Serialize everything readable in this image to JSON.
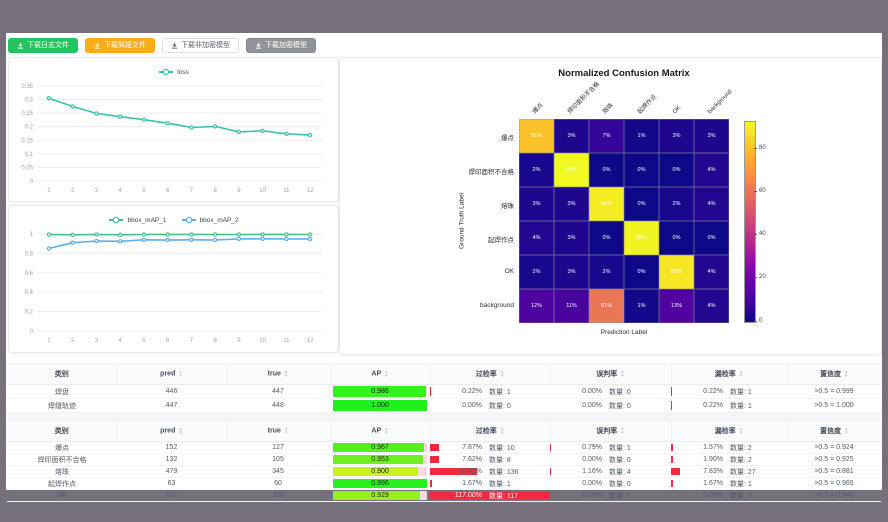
{
  "colors": {
    "frame": "#76707A",
    "button_green": "#22c45e",
    "button_orange": "#faad14",
    "button_gray": "#909399",
    "metric_bar": "#f5283c",
    "ap_track": "#ffd9de"
  },
  "toolbar": {
    "buttons": [
      {
        "label": "下载日志文件",
        "variant": "green"
      },
      {
        "label": "下载简报文件",
        "variant": "orange"
      },
      {
        "label": "下载非加密模型",
        "variant": "plain"
      },
      {
        "label": "下载加密模型",
        "variant": "gray"
      }
    ]
  },
  "chart_data": [
    {
      "type": "line",
      "title": "",
      "x": [
        1,
        2,
        3,
        4,
        5,
        6,
        7,
        8,
        9,
        10,
        11,
        12
      ],
      "series": [
        {
          "name": "loss",
          "color": "#3bc3ac",
          "values": [
            0.305,
            0.275,
            0.249,
            0.237,
            0.226,
            0.213,
            0.197,
            0.201,
            0.181,
            0.185,
            0.174,
            0.169
          ]
        }
      ],
      "ylim": [
        0,
        0.35
      ],
      "ytick_step": 0.05,
      "legend_position": "top",
      "grid": true
    },
    {
      "type": "line",
      "title": "",
      "x": [
        1,
        2,
        3,
        4,
        5,
        6,
        7,
        8,
        9,
        10,
        11,
        12
      ],
      "series": [
        {
          "name": "bbox_mAP_1",
          "color": "#3dc48e",
          "values": [
            0.995,
            0.992,
            0.995,
            0.992,
            0.995,
            0.996,
            0.996,
            0.995,
            0.995,
            0.996,
            0.996,
            0.995
          ]
        },
        {
          "name": "bbox_mAP_2",
          "color": "#58aef0",
          "values": [
            0.85,
            0.91,
            0.928,
            0.925,
            0.94,
            0.937,
            0.94,
            0.938,
            0.95,
            0.951,
            0.949,
            0.948
          ]
        }
      ],
      "ylim": [
        0,
        1
      ],
      "ytick_step": 0.2,
      "legend_position": "top",
      "grid": true
    },
    {
      "type": "heatmap",
      "title": "Normalized Confusion Matrix",
      "xlabel": "Prediction Label",
      "ylabel": "Ground Truth Label",
      "labels": [
        "爆点",
        "焊印面积不合格",
        "熔珠",
        "起焊作点",
        "OK",
        "background"
      ],
      "values": [
        [
          81,
          3,
          7,
          1,
          3,
          3
        ],
        [
          2,
          93,
          0,
          0,
          0,
          4
        ],
        [
          3,
          3,
          90,
          0,
          2,
          4
        ],
        [
          4,
          3,
          0,
          92,
          0,
          0
        ],
        [
          2,
          3,
          2,
          0,
          89,
          4
        ],
        [
          12,
          11,
          61,
          1,
          13,
          4
        ]
      ],
      "vmin": 0,
      "vmax": 93,
      "colorbar_ticks": [
        0,
        20,
        40,
        60,
        80
      ],
      "colormap": "plasma",
      "colormap_stops": [
        [
          0.0,
          "#0d0887"
        ],
        [
          0.1,
          "#41049d"
        ],
        [
          0.2,
          "#6a00a8"
        ],
        [
          0.3,
          "#8f0da4"
        ],
        [
          0.4,
          "#b12a90"
        ],
        [
          0.5,
          "#cc4778"
        ],
        [
          0.6,
          "#e16462"
        ],
        [
          0.7,
          "#f2844b"
        ],
        [
          0.8,
          "#fca636"
        ],
        [
          0.9,
          "#fcce25"
        ],
        [
          1.0,
          "#f0f921"
        ]
      ]
    }
  ],
  "tables": [
    {
      "headers": [
        {
          "label": "类别",
          "sortable": false
        },
        {
          "label": "pred",
          "sortable": true
        },
        {
          "label": "true",
          "sortable": true
        },
        {
          "label": "AP",
          "sortable": true
        },
        {
          "label": "过检率",
          "sortable": true
        },
        {
          "label": "误判率",
          "sortable": true
        },
        {
          "label": "漏检率",
          "sortable": true
        },
        {
          "label": "置信度",
          "sortable": true
        }
      ],
      "rows": [
        {
          "label": "焊盘",
          "pred": "446",
          "true": "447",
          "ap": {
            "display": "0.986",
            "value": 0.986
          },
          "metrics": [
            {
              "pct": "0.22%",
              "count": "数量: 1",
              "bar": 0.22
            },
            {
              "pct": "0.00%",
              "count": "数量: 0",
              "bar": 0
            },
            {
              "pct": "0.22%",
              "count": "数量: 1",
              "bar": 0.22
            }
          ],
          "conf": ">0.5 = 0.999"
        },
        {
          "label": "焊缝轨迹",
          "pred": "447",
          "true": "448",
          "ap": {
            "display": "1.000",
            "value": 1.0
          },
          "metrics": [
            {
              "pct": "0.00%",
              "count": "数量: 0",
              "bar": 0
            },
            {
              "pct": "0.00%",
              "count": "数量: 0",
              "bar": 0
            },
            {
              "pct": "0.22%",
              "count": "数量: 1",
              "bar": 0.22
            }
          ],
          "conf": ">0.5 = 1.000"
        }
      ]
    },
    {
      "headers": [
        {
          "label": "类别",
          "sortable": false
        },
        {
          "label": "pred",
          "sortable": true
        },
        {
          "label": "true",
          "sortable": true
        },
        {
          "label": "AP",
          "sortable": true
        },
        {
          "label": "过检率",
          "sortable": true
        },
        {
          "label": "误判率",
          "sortable": true
        },
        {
          "label": "漏检率",
          "sortable": true
        },
        {
          "label": "置信度",
          "sortable": true
        }
      ],
      "rows": [
        {
          "label": "爆点",
          "pred": "152",
          "true": "127",
          "ap": {
            "display": "0.967",
            "value": 0.967
          },
          "metrics": [
            {
              "pct": "7.87%",
              "count": "数量: 10",
              "bar": 7.87
            },
            {
              "pct": "0.79%",
              "count": "数量: 1",
              "bar": 0.79
            },
            {
              "pct": "1.57%",
              "count": "数量: 2",
              "bar": 1.57
            }
          ],
          "conf": ">0.5 = 0.924"
        },
        {
          "label": "焊印面积不合格",
          "pred": "132",
          "true": "105",
          "ap": {
            "display": "0.953",
            "value": 0.953
          },
          "metrics": [
            {
              "pct": "7.62%",
              "count": "数量: 8",
              "bar": 7.62
            },
            {
              "pct": "0.00%",
              "count": "数量: 0",
              "bar": 0
            },
            {
              "pct": "1.90%",
              "count": "数量: 2",
              "bar": 1.9
            }
          ],
          "conf": ">0.5 = 0.925"
        },
        {
          "label": "熔珠",
          "pred": "479",
          "true": "345",
          "ap": {
            "display": "0.900",
            "value": 0.9
          },
          "metrics": [
            {
              "pct": "39.42%",
              "count": "数量: 136",
              "bar": 39.42
            },
            {
              "pct": "1.16%",
              "count": "数量: 4",
              "bar": 1.16
            },
            {
              "pct": "7.83%",
              "count": "数量: 27",
              "bar": 7.83
            }
          ],
          "conf": ">0.5 = 0.881"
        },
        {
          "label": "起焊作点",
          "pred": "63",
          "true": "60",
          "ap": {
            "display": "0.996",
            "value": 0.996
          },
          "metrics": [
            {
              "pct": "1.67%",
              "count": "数量: 1",
              "bar": 1.67
            },
            {
              "pct": "0.00%",
              "count": "数量: 0",
              "bar": 0
            },
            {
              "pct": "1.67%",
              "count": "数量: 1",
              "bar": 1.67
            }
          ],
          "conf": ">0.5 = 0.965"
        },
        {
          "label": "OK",
          "pred": "117",
          "true": "100",
          "ap": {
            "display": "0.929",
            "value": 0.929
          },
          "metrics": [
            {
              "pct": "117.00%",
              "count": "数量: 117",
              "bar": 117
            },
            {
              "pct": "0.00%",
              "count": "数量: 0",
              "bar": 0
            },
            {
              "pct": "0.00%",
              "count": "数量: 0",
              "bar": 0
            }
          ],
          "conf": ">0.5 = 0.940"
        }
      ]
    }
  ]
}
